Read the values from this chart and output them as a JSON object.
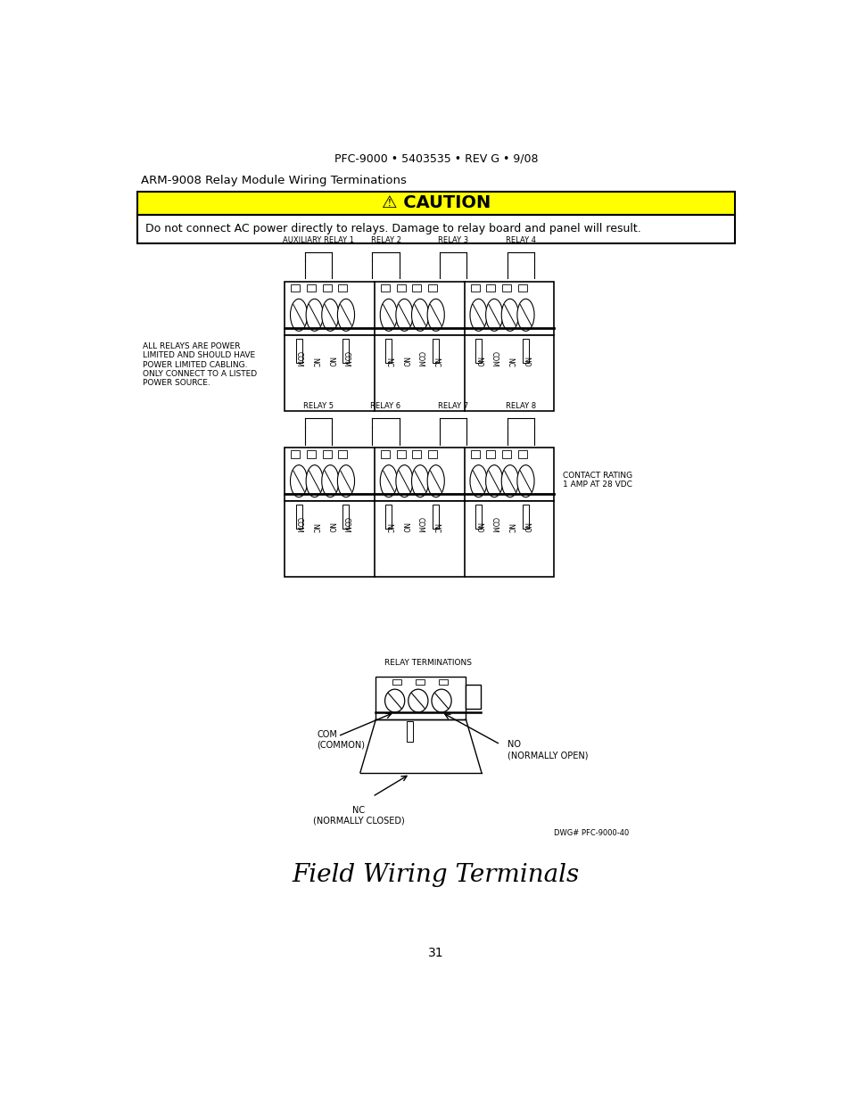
{
  "header_text": "PFC-9000 • 5403535 • REV G • 9/08",
  "subtitle": "ARM-9008 Relay Module Wiring Terminations",
  "caution_title": "⚠ CAUTION",
  "caution_text": "Do not connect AC power directly to relays. Damage to relay board and panel will result.",
  "relay_labels_top": [
    "AUXILIARY RELAY 1",
    "RELAY 2",
    "RELAY 3",
    "RELAY 4"
  ],
  "relay_labels_bottom": [
    "RELAY 5",
    "RELAY 6",
    "RELAY 7",
    "RELAY 8"
  ],
  "power_note": "ALL RELAYS ARE POWER\nLIMITED AND SHOULD HAVE\nPOWER LIMITED CABLING.\nONLY CONNECT TO A LISTED\nPOWER SOURCE.",
  "contact_rating": "CONTACT RATING\n1 AMP AT 28 VDC",
  "relay_term_label": "RELAY TERMINATIONS",
  "com_label": "COM\n(COMMON)",
  "no_label": "NO\n(NORMALLY OPEN)",
  "nc_label": "NC\n(NORMALLY CLOSED)",
  "dwg_label": "DWG# PFC-9000-40",
  "footer_title": "Field Wiring Terminals",
  "page_number": "31",
  "bg_color": "#ffffff",
  "caution_bg": "#ffff00",
  "terminal_seq_top": [
    "COM",
    "NC",
    "NO",
    "COM",
    "NC",
    "NO",
    "COM",
    "NC",
    "NO",
    "COM",
    "NC",
    "NO"
  ],
  "terminal_seq_bot": [
    "COM",
    "NC",
    "NO",
    "COM",
    "NC",
    "NO",
    "COM",
    "NC",
    "NO",
    "COM",
    "NC",
    "NO"
  ]
}
